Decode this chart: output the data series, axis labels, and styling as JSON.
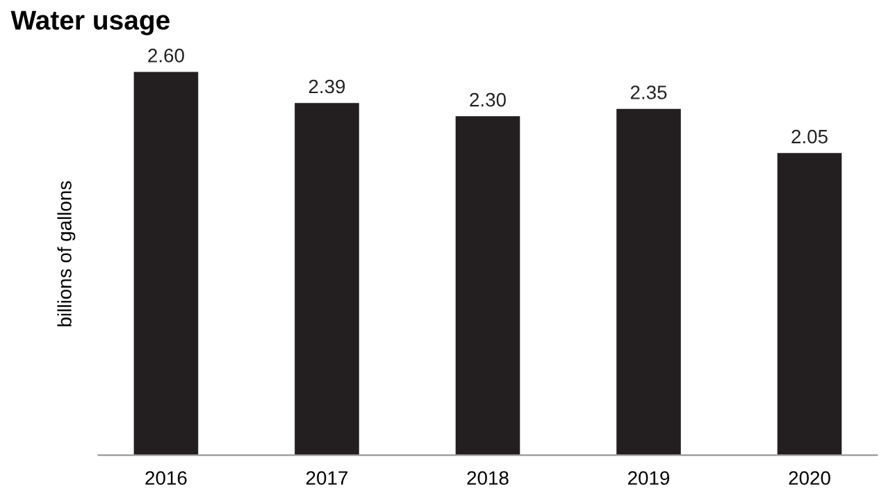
{
  "chart_data": {
    "type": "bar",
    "title": "Water usage",
    "ylabel": "billions of gallons",
    "categories": [
      "2016",
      "2017",
      "2018",
      "2019",
      "2020"
    ],
    "values": [
      2.6,
      2.39,
      2.3,
      2.35,
      2.05
    ],
    "value_labels": [
      "2.60",
      "2.39",
      "2.30",
      "2.35",
      "2.05"
    ],
    "color": "#231f20",
    "tick_labels": "x",
    "grid": false,
    "legend": false
  }
}
